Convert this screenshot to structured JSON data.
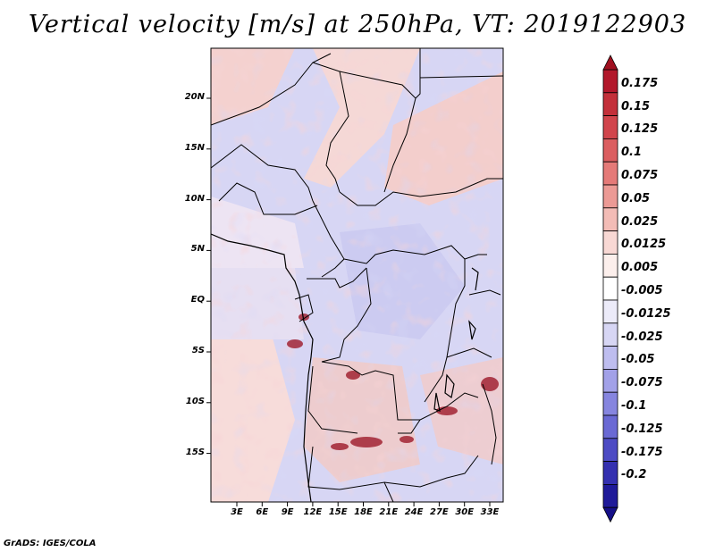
{
  "title": "Vertical velocity [m/s] at 250hPa, VT: 2019122903",
  "footer": "GrADS: IGES/COLA",
  "map": {
    "lat_labels": [
      "20N",
      "15N",
      "10N",
      "5N",
      "EQ",
      "5S",
      "10S",
      "15S"
    ],
    "lon_labels": [
      "3E",
      "6E",
      "9E",
      "12E",
      "15E",
      "18E",
      "21E",
      "24E",
      "27E",
      "30E",
      "33E"
    ]
  },
  "colorbar": {
    "labels": [
      "0.175",
      "0.15",
      "0.125",
      "0.1",
      "0.075",
      "0.05",
      "0.025",
      "0.0125",
      "0.005",
      "-0.005",
      "-0.0125",
      "-0.025",
      "-0.05",
      "-0.075",
      "-0.1",
      "-0.125",
      "-0.175",
      "-0.2"
    ],
    "colors": [
      "#b2182b",
      "#c3303a",
      "#d1454c",
      "#db5e60",
      "#e57a78",
      "#ec9a95",
      "#f3bcb6",
      "#f8d8d4",
      "#fcefec",
      "#ffffff",
      "#ecebf9",
      "#d7d6f4",
      "#bebdef",
      "#a2a1e8",
      "#8685df",
      "#6a69d4",
      "#4d4bc4",
      "#3430b0",
      "#1f1a99"
    ],
    "top_arrow_color": "#a01020",
    "bottom_arrow_color": "#150f88"
  }
}
